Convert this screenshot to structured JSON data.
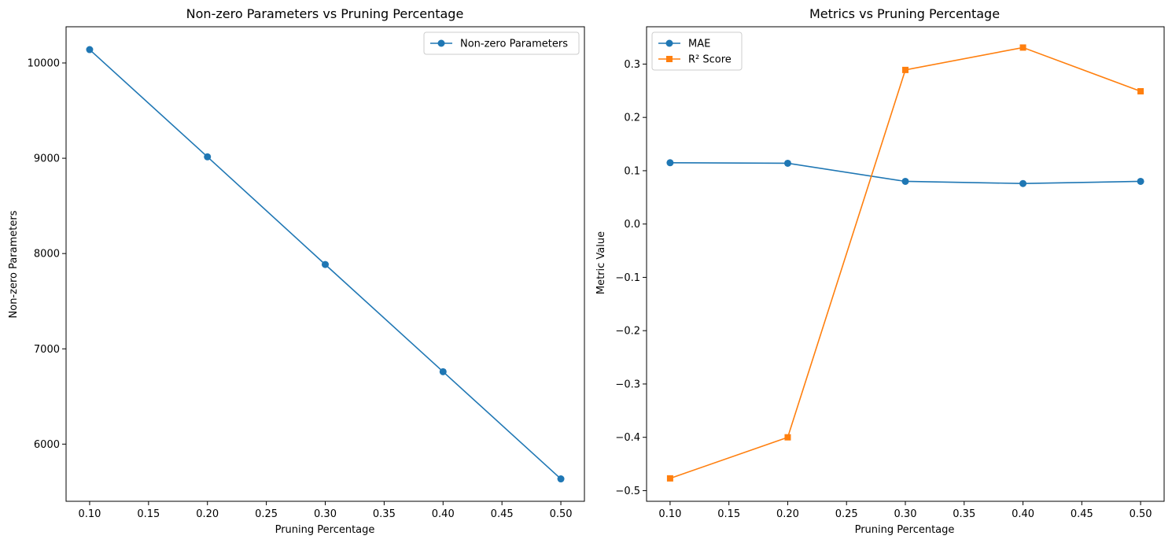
{
  "chart_data": [
    {
      "type": "line",
      "title": "Non-zero Parameters vs Pruning Percentage",
      "xlabel": "Pruning Percentage",
      "ylabel": "Non-zero Parameters",
      "xlim": [
        0.08,
        0.52
      ],
      "ylim": [
        5400,
        10380
      ],
      "xticks": [
        0.1,
        0.15,
        0.2,
        0.25,
        0.3,
        0.35,
        0.4,
        0.45,
        0.5
      ],
      "xtick_labels": [
        "0.10",
        "0.15",
        "0.20",
        "0.25",
        "0.30",
        "0.35",
        "0.40",
        "0.45",
        "0.50"
      ],
      "yticks": [
        6000,
        7000,
        8000,
        9000,
        10000
      ],
      "ytick_labels": [
        "6000",
        "7000",
        "8000",
        "9000",
        "10000"
      ],
      "legend_position": "top-right",
      "grid": false,
      "series": [
        {
          "name": "Non-zero Parameters",
          "color": "#1f77b4",
          "marker": "circle",
          "x": [
            0.1,
            0.2,
            0.3,
            0.4,
            0.5
          ],
          "y": [
            10140,
            9015,
            7885,
            6760,
            5635
          ]
        }
      ]
    },
    {
      "type": "line",
      "title": "Metrics vs Pruning Percentage",
      "xlabel": "Pruning Percentage",
      "ylabel": "Metric Value",
      "xlim": [
        0.08,
        0.52
      ],
      "ylim": [
        -0.52,
        0.37
      ],
      "xticks": [
        0.1,
        0.15,
        0.2,
        0.25,
        0.3,
        0.35,
        0.4,
        0.45,
        0.5
      ],
      "xtick_labels": [
        "0.10",
        "0.15",
        "0.20",
        "0.25",
        "0.30",
        "0.35",
        "0.40",
        "0.45",
        "0.50"
      ],
      "yticks": [
        -0.5,
        -0.4,
        -0.3,
        -0.2,
        -0.1,
        0.0,
        0.1,
        0.2,
        0.3
      ],
      "ytick_labels": [
        "−0.5",
        "−0.4",
        "−0.3",
        "−0.2",
        "−0.1",
        "0.0",
        "0.1",
        "0.2",
        "0.3"
      ],
      "legend_position": "top-left",
      "grid": false,
      "series": [
        {
          "name": "MAE",
          "color": "#1f77b4",
          "marker": "circle",
          "x": [
            0.1,
            0.2,
            0.3,
            0.4,
            0.5
          ],
          "y": [
            0.115,
            0.114,
            0.08,
            0.076,
            0.08
          ]
        },
        {
          "name": "R² Score",
          "color": "#ff7f0e",
          "marker": "square",
          "x": [
            0.1,
            0.2,
            0.3,
            0.4,
            0.5
          ],
          "y": [
            -0.477,
            -0.4,
            0.289,
            0.331,
            0.249
          ]
        }
      ]
    }
  ]
}
